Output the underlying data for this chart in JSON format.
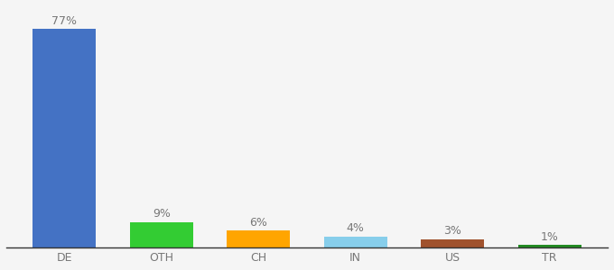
{
  "categories": [
    "DE",
    "OTH",
    "CH",
    "IN",
    "US",
    "TR"
  ],
  "values": [
    77,
    9,
    6,
    4,
    3,
    1
  ],
  "bar_colors": [
    "#4472C4",
    "#33CC33",
    "#FFA500",
    "#87CEEB",
    "#A0522D",
    "#228B22"
  ],
  "label_texts": [
    "77%",
    "9%",
    "6%",
    "4%",
    "3%",
    "1%"
  ],
  "background_color": "#f5f5f5",
  "ylim": [
    0,
    85
  ],
  "label_fontsize": 9,
  "tick_fontsize": 9,
  "bar_width": 0.65
}
